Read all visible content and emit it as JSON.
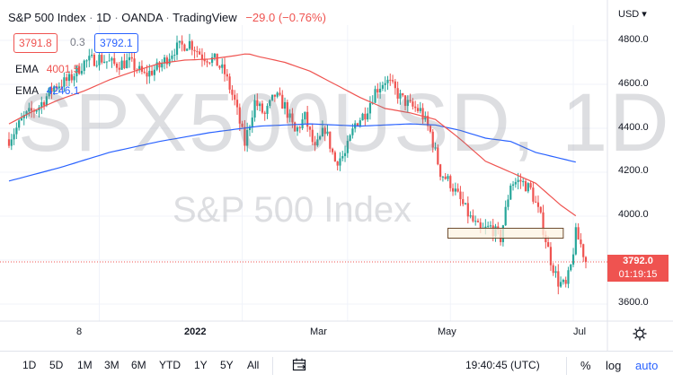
{
  "header": {
    "symbol": "S&P 500 Index",
    "interval": "1D",
    "broker": "OANDA",
    "platform": "TradingView",
    "change": "−29.0 (−0.76%)",
    "bid": "3791.8",
    "spread": "0.3",
    "ask": "3792.1",
    "currency": "USD ▾"
  },
  "ema": [
    {
      "label": "EMA",
      "value": "4001.5",
      "color": "#ef5350"
    },
    {
      "label": "EMA",
      "value": "4246.1",
      "color": "#2962ff"
    }
  ],
  "watermark": {
    "symbol": "SPX500USD, 1D",
    "name": "S&P 500 Index"
  },
  "price_tag": {
    "price": "3792.0",
    "countdown": "01:19:15"
  },
  "colors": {
    "up": "#26a69a",
    "down": "#ef5350",
    "ema_fast": "#ef5350",
    "ema_slow": "#2962ff",
    "zone_fill": "#fdf3e1",
    "zone_border": "#6d4c2f"
  },
  "bottom": {
    "ranges": [
      "1D",
      "5D",
      "1M",
      "3M",
      "6M",
      "YTD",
      "1Y",
      "5Y",
      "All"
    ],
    "time": "19:40:45 (UTC)",
    "percent": "%",
    "log": "log",
    "auto": "auto"
  },
  "chart_data": {
    "type": "candlestick",
    "y_ticks": [
      "4800.0",
      "4600.0",
      "4400.0",
      "4200.0",
      "4000.0",
      "3600.0"
    ],
    "y_tick_values": [
      4800,
      4600,
      4400,
      4200,
      4000,
      3600
    ],
    "ylim": [
      3540,
      4880
    ],
    "x_ticks": [
      "8",
      "2022",
      "Mar",
      "May",
      "Jul"
    ],
    "x_tick_index": [
      36,
      93,
      135,
      176,
      225
    ],
    "current_price": 3792.0,
    "resistance_zone": {
      "start_index": 175,
      "end_index": 221,
      "low": 3900,
      "high": 3945
    },
    "ema_fast_anchors": [
      [
        0,
        4420
      ],
      [
        10,
        4480
      ],
      [
        20,
        4530
      ],
      [
        30,
        4570
      ],
      [
        40,
        4620
      ],
      [
        50,
        4660
      ],
      [
        60,
        4695
      ],
      [
        70,
        4710
      ],
      [
        80,
        4715
      ],
      [
        90,
        4730
      ],
      [
        95,
        4740
      ],
      [
        100,
        4725
      ],
      [
        110,
        4700
      ],
      [
        120,
        4660
      ],
      [
        130,
        4600
      ],
      [
        140,
        4540
      ],
      [
        150,
        4490
      ],
      [
        160,
        4470
      ],
      [
        170,
        4440
      ],
      [
        180,
        4350
      ],
      [
        190,
        4250
      ],
      [
        200,
        4200
      ],
      [
        210,
        4150
      ],
      [
        220,
        4050
      ],
      [
        226,
        4001.5
      ]
    ],
    "ema_slow_anchors": [
      [
        0,
        4160
      ],
      [
        20,
        4220
      ],
      [
        40,
        4290
      ],
      [
        60,
        4340
      ],
      [
        80,
        4380
      ],
      [
        100,
        4410
      ],
      [
        120,
        4420
      ],
      [
        140,
        4410
      ],
      [
        160,
        4420
      ],
      [
        170,
        4415
      ],
      [
        180,
        4390
      ],
      [
        190,
        4355
      ],
      [
        200,
        4340
      ],
      [
        210,
        4290
      ],
      [
        226,
        4246.1
      ]
    ],
    "price_anchors": [
      [
        0,
        4350
      ],
      [
        6,
        4450
      ],
      [
        12,
        4500
      ],
      [
        18,
        4590
      ],
      [
        24,
        4620
      ],
      [
        30,
        4700
      ],
      [
        36,
        4720
      ],
      [
        42,
        4690
      ],
      [
        48,
        4700
      ],
      [
        54,
        4640
      ],
      [
        60,
        4680
      ],
      [
        66,
        4760
      ],
      [
        72,
        4790
      ],
      [
        77,
        4730
      ],
      [
        82,
        4710
      ],
      [
        86,
        4650
      ],
      [
        90,
        4520
      ],
      [
        94,
        4330
      ],
      [
        98,
        4520
      ],
      [
        102,
        4460
      ],
      [
        106,
        4550
      ],
      [
        110,
        4500
      ],
      [
        114,
        4380
      ],
      [
        118,
        4450
      ],
      [
        122,
        4300
      ],
      [
        126,
        4400
      ],
      [
        130,
        4250
      ],
      [
        134,
        4280
      ],
      [
        138,
        4420
      ],
      [
        142,
        4470
      ],
      [
        146,
        4570
      ],
      [
        150,
        4620
      ],
      [
        152,
        4600
      ],
      [
        156,
        4540
      ],
      [
        160,
        4500
      ],
      [
        164,
        4480
      ],
      [
        168,
        4380
      ],
      [
        172,
        4200
      ],
      [
        176,
        4150
      ],
      [
        180,
        4070
      ],
      [
        184,
        3990
      ],
      [
        188,
        3930
      ],
      [
        192,
        3950
      ],
      [
        196,
        3900
      ],
      [
        200,
        4150
      ],
      [
        204,
        4160
      ],
      [
        208,
        4120
      ],
      [
        212,
        3990
      ],
      [
        216,
        3800
      ],
      [
        219,
        3700
      ],
      [
        222,
        3680
      ],
      [
        224,
        3770
      ],
      [
        226,
        3920
      ],
      [
        228,
        3870
      ],
      [
        230,
        3792
      ]
    ]
  }
}
